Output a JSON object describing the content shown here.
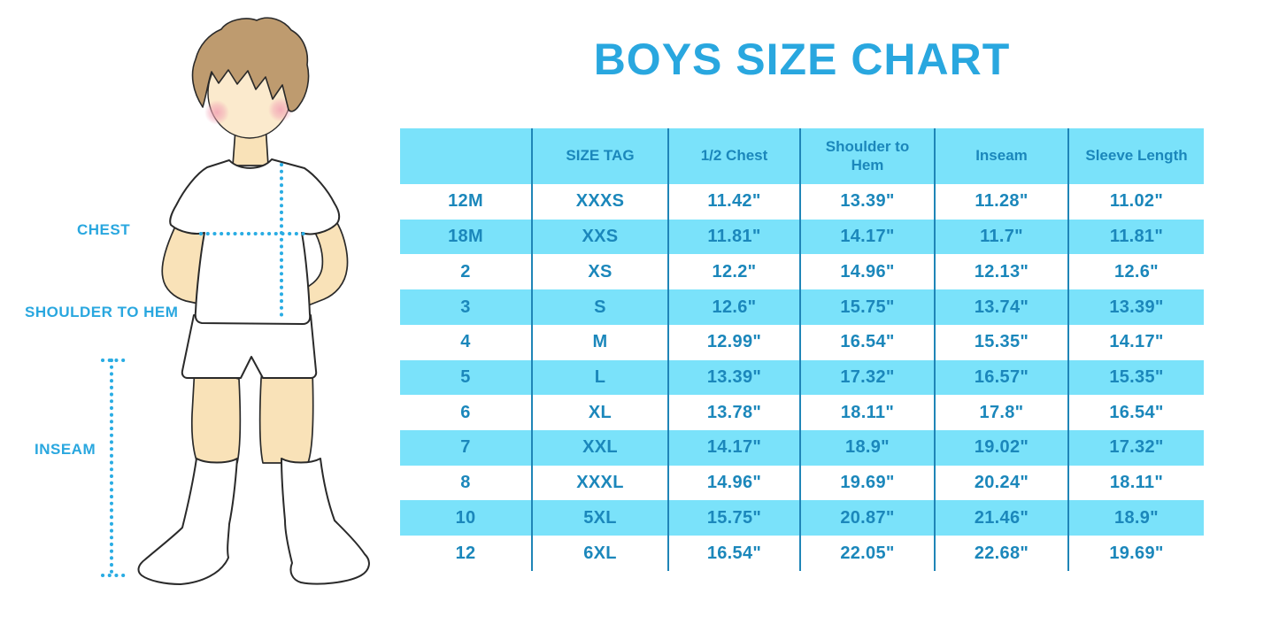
{
  "title": "BOYS SIZE CHART",
  "figure": {
    "labels": {
      "chest": "CHEST",
      "shoulder_to_hem": "SHOULDER TO HEM",
      "inseam": "INSEAM"
    }
  },
  "size_table": {
    "columns": [
      "",
      "SIZE TAG",
      "1/2 Chest",
      "Shoulder to Hem",
      "Inseam",
      "Sleeve Length"
    ],
    "rows": [
      [
        "12M",
        "XXXS",
        "11.42\"",
        "13.39\"",
        "11.28\"",
        "11.02\""
      ],
      [
        "18M",
        "XXS",
        "11.81\"",
        "14.17\"",
        "11.7\"",
        "11.81\""
      ],
      [
        "2",
        "XS",
        "12.2\"",
        "14.96\"",
        "12.13\"",
        "12.6\""
      ],
      [
        "3",
        "S",
        "12.6\"",
        "15.75\"",
        "13.74\"",
        "13.39\""
      ],
      [
        "4",
        "M",
        "12.99\"",
        "16.54\"",
        "15.35\"",
        "14.17\""
      ],
      [
        "5",
        "L",
        "13.39\"",
        "17.32\"",
        "16.57\"",
        "15.35\""
      ],
      [
        "6",
        "XL",
        "13.78\"",
        "18.11\"",
        "17.8\"",
        "16.54\""
      ],
      [
        "7",
        "XXL",
        "14.17\"",
        "18.9\"",
        "19.02\"",
        "17.32\""
      ],
      [
        "8",
        "XXXL",
        "14.96\"",
        "19.69\"",
        "20.24\"",
        "18.11\""
      ],
      [
        "10",
        "5XL",
        "15.75\"",
        "20.87\"",
        "21.46\"",
        "18.9\""
      ],
      [
        "12",
        "6XL",
        "16.54\"",
        "22.05\"",
        "22.68\"",
        "19.69\""
      ]
    ]
  },
  "colors": {
    "accent_blue": "#29A7DF",
    "band_blue": "#7AE2FA",
    "grid_line": "#1F85B7",
    "table_text": "#1B87BB",
    "dotted_line": "#29ACE3",
    "skin": "#F9E2B8",
    "face_skin": "#FBEACD",
    "hair_brown": "#BE9B6F",
    "outline_dark": "#2A2A2A",
    "garment_white": "#FFFFFF"
  }
}
